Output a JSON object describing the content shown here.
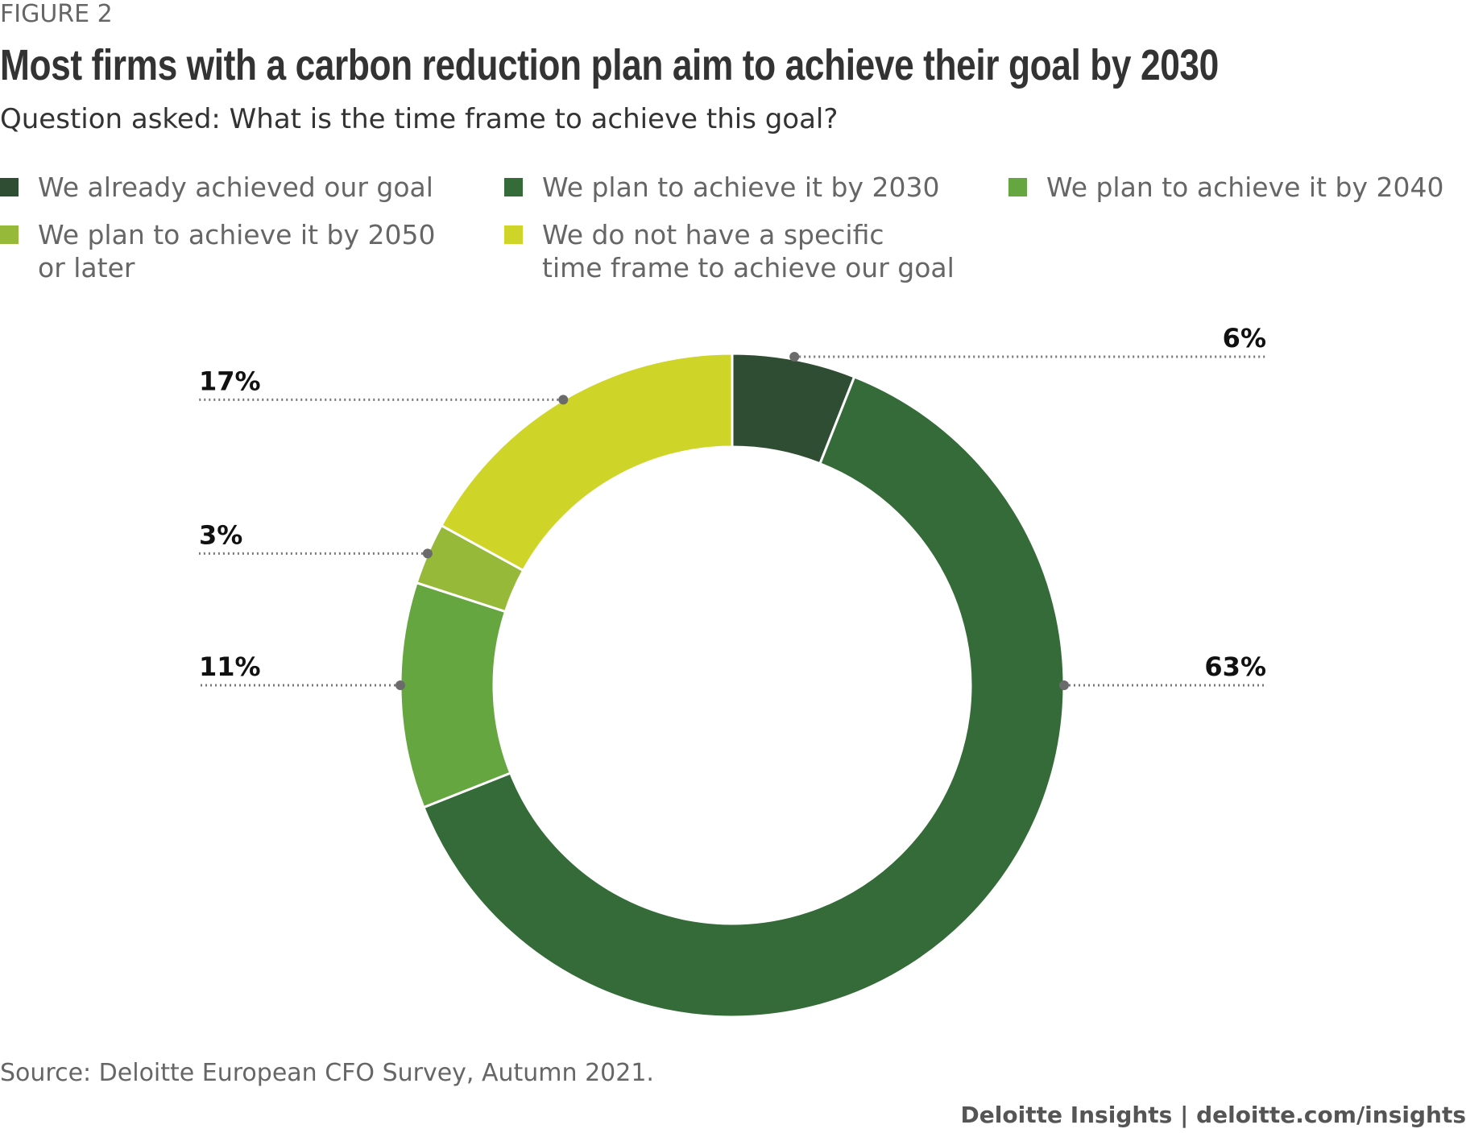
{
  "figure_label": "FIGURE 2",
  "chart_data": {
    "type": "pie",
    "donut": true,
    "title": "Most firms with a carbon reduction plan aim to achieve their goal by 2030",
    "subtitle": "Question asked: What is the time frame to achieve this goal?",
    "slices": [
      {
        "name": "We already achieved our goal",
        "value": 6,
        "label": "6%",
        "color": "#2f4d33"
      },
      {
        "name": "We plan to achieve it by 2030",
        "value": 63,
        "label": "63%",
        "color": "#356a39"
      },
      {
        "name": "We plan to achieve it by 2040",
        "value": 11,
        "label": "11%",
        "color": "#66a640"
      },
      {
        "name": "We plan to achieve it by 2050 or later",
        "value": 3,
        "label": "3%",
        "color": "#97b939"
      },
      {
        "name": "We do not have a specific time frame to achieve our goal",
        "value": 17,
        "label": "17%",
        "color": "#cfd528"
      }
    ],
    "legend": [
      {
        "line1": "We already achieved our goal",
        "line2": ""
      },
      {
        "line1": "We plan to achieve it by 2030",
        "line2": ""
      },
      {
        "line1": "We plan to achieve it by 2040",
        "line2": ""
      },
      {
        "line1": "We plan to achieve it by 2050",
        "line2": "or later"
      },
      {
        "line1": "We do not have a specific",
        "line2": "time frame to achieve our goal"
      }
    ],
    "legend_placement": "top"
  },
  "source": "Source: Deloitte European CFO Survey, Autumn 2021.",
  "footer": "Deloitte Insights | deloitte.com/insights"
}
